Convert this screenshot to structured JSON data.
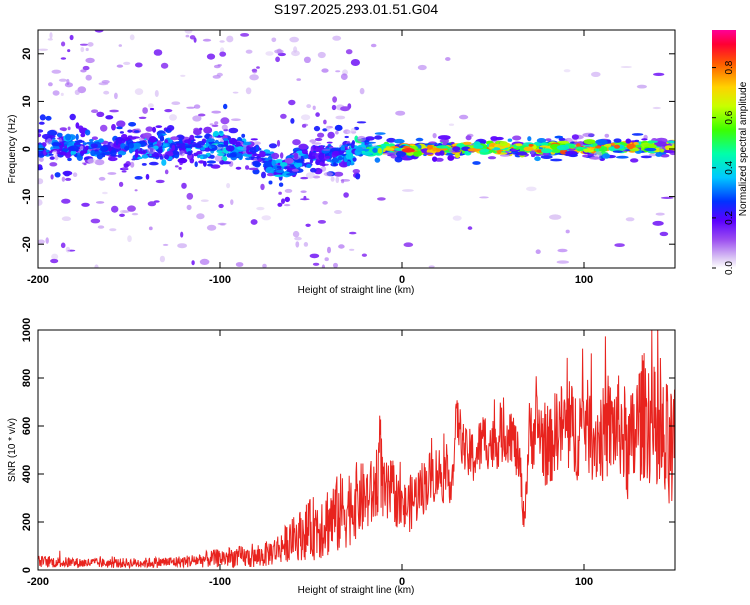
{
  "title": "S197.2025.293.01.51.G04",
  "chart_data": [
    {
      "type": "heatmap",
      "title": "S197.2025.293.01.51.G04",
      "xlabel": "Height of straight line (km)",
      "ylabel": "Frequency (Hz)",
      "xlim": [
        -200,
        150
      ],
      "ylim": [
        -25,
        25
      ],
      "xticks": [
        -200,
        -100,
        0,
        100
      ],
      "xtick_labels": [
        "-200",
        "-100",
        "0",
        "100"
      ],
      "yticks": [
        20,
        10,
        0,
        -10,
        -20
      ],
      "ytick_labels": [
        "20",
        "10",
        "0",
        "-10",
        "-20"
      ],
      "colorbar": {
        "label": "Normalized spectral amplitude",
        "range": [
          0.0,
          0.95
        ],
        "ticks": [
          0.0,
          0.2,
          0.4,
          0.6,
          0.8
        ],
        "tick_labels": [
          "0.0",
          "0.2",
          "0.4",
          "0.6",
          "0.8"
        ],
        "colormap": "rainbow (white-lavender, purple, blue, cyan, green, yellow, orange, red, magenta)"
      },
      "ridge": {
        "description": "Dominant energy band near 0 Hz; broad and noisy below about -20 km, narrow and strong above about -20 km",
        "x": [
          -200,
          -180,
          -160,
          -140,
          -120,
          -100,
          -90,
          -80,
          -70,
          -65,
          -60,
          -50,
          -40,
          -30,
          -20,
          0,
          50,
          100,
          150
        ],
        "center_hz": [
          0.8,
          0.5,
          0.3,
          0.2,
          0.3,
          0.8,
          0.0,
          -1.5,
          -3.5,
          -5.0,
          -3.0,
          -1.5,
          -0.8,
          -1.0,
          0.0,
          0.0,
          0.2,
          0.3,
          0.5
        ],
        "peak_amplitude": [
          0.3,
          0.35,
          0.3,
          0.35,
          0.3,
          0.4,
          0.35,
          0.3,
          0.35,
          0.4,
          0.35,
          0.3,
          0.3,
          0.35,
          0.5,
          0.8,
          0.75,
          0.8,
          0.7
        ]
      }
    },
    {
      "type": "line",
      "title": "",
      "xlabel": "Height of straight line (km)",
      "ylabel": "SNR (10 * v/v)",
      "xlim": [
        -200,
        150
      ],
      "ylim": [
        0,
        1000
      ],
      "xticks": [
        -200,
        -100,
        0,
        100
      ],
      "xtick_labels": [
        "-200",
        "-100",
        "0",
        "100"
      ],
      "yticks": [
        0,
        200,
        400,
        600,
        800,
        1000
      ],
      "ytick_labels": [
        "0",
        "200",
        "400",
        "600",
        "800",
        "1000"
      ],
      "series": [
        {
          "name": "SNR",
          "color": "#e8231e",
          "x": [
            -200,
            -180,
            -160,
            -140,
            -120,
            -100,
            -90,
            -80,
            -70,
            -60,
            -55,
            -50,
            -45,
            -40,
            -35,
            -30,
            -25,
            -20,
            -15,
            -12,
            -10,
            -5,
            0,
            5,
            10,
            15,
            20,
            25,
            28,
            30,
            35,
            40,
            45,
            50,
            55,
            60,
            65,
            67,
            70,
            75,
            80,
            85,
            90,
            95,
            100,
            105,
            110,
            115,
            120,
            125,
            130,
            135,
            140,
            145,
            150
          ],
          "values": [
            35,
            30,
            28,
            30,
            35,
            50,
            55,
            50,
            80,
            130,
            150,
            170,
            190,
            210,
            230,
            260,
            290,
            300,
            320,
            480,
            300,
            330,
            250,
            280,
            330,
            380,
            410,
            370,
            400,
            640,
            480,
            470,
            550,
            520,
            560,
            580,
            420,
            200,
            560,
            600,
            480,
            590,
            600,
            560,
            630,
            550,
            560,
            590,
            600,
            480,
            620,
            660,
            520,
            490,
            450
          ],
          "spread": [
            25,
            22,
            20,
            22,
            25,
            40,
            45,
            45,
            60,
            90,
            110,
            130,
            150,
            160,
            170,
            170,
            160,
            150,
            150,
            200,
            150,
            130,
            110,
            120,
            120,
            120,
            120,
            110,
            100,
            100,
            110,
            120,
            120,
            120,
            120,
            130,
            100,
            60,
            150,
            170,
            160,
            180,
            200,
            210,
            200,
            190,
            200,
            210,
            220,
            240,
            260,
            280,
            300,
            300,
            300
          ]
        }
      ]
    }
  ]
}
